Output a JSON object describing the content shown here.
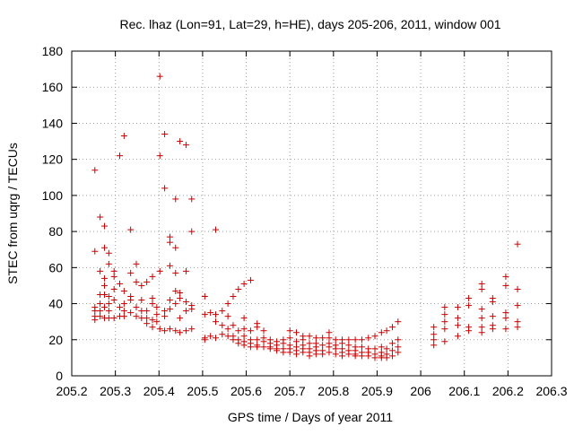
{
  "chart_data": {
    "type": "scatter",
    "title": "Rec. lhaz (Lon=91, Lat=29, h=HE), days 205-206, 2011, window 001",
    "xlabel": "GPS time / Days of year 2011",
    "ylabel": "STEC from uqrg / TECUs",
    "xlim": [
      205.2,
      206.3
    ],
    "ylim": [
      0,
      180
    ],
    "x_ticks": [
      205.2,
      205.3,
      205.4,
      205.5,
      205.6,
      205.7,
      205.8,
      205.9,
      206,
      206.1,
      206.2,
      206.3
    ],
    "x_tick_labels": [
      "205.2",
      "205.3",
      "205.4",
      "205.5",
      "205.6",
      "205.7",
      "205.8",
      "205.9",
      "206",
      "206.1",
      "206.2",
      "206.3"
    ],
    "y_ticks": [
      0,
      20,
      40,
      60,
      80,
      100,
      120,
      140,
      160,
      180
    ],
    "y_tick_labels": [
      "0",
      "20",
      "40",
      "60",
      "80",
      "100",
      "120",
      "140",
      "160",
      "180"
    ],
    "grid": true,
    "marker": "plus",
    "marker_color": "#cc0000",
    "series": [
      {
        "points": [
          [
            205.253,
            114
          ],
          [
            205.253,
            69
          ],
          [
            205.253,
            38
          ],
          [
            205.253,
            36
          ],
          [
            205.253,
            33
          ],
          [
            205.253,
            31
          ],
          [
            205.265,
            88
          ],
          [
            205.265,
            58
          ],
          [
            205.265,
            45
          ],
          [
            205.265,
            40
          ],
          [
            205.265,
            36
          ],
          [
            205.265,
            33
          ],
          [
            205.275,
            83
          ],
          [
            205.275,
            71
          ],
          [
            205.275,
            54
          ],
          [
            205.275,
            50
          ],
          [
            205.275,
            45
          ],
          [
            205.275,
            38
          ],
          [
            205.275,
            32
          ],
          [
            205.285,
            68
          ],
          [
            205.285,
            62
          ],
          [
            205.285,
            44
          ],
          [
            205.285,
            40
          ],
          [
            205.285,
            36
          ],
          [
            205.285,
            32
          ],
          [
            205.297,
            58
          ],
          [
            205.297,
            55
          ],
          [
            205.297,
            48
          ],
          [
            205.297,
            42
          ],
          [
            205.297,
            32
          ],
          [
            205.31,
            122
          ],
          [
            205.31,
            51
          ],
          [
            205.31,
            38
          ],
          [
            205.31,
            33
          ],
          [
            205.32,
            133
          ],
          [
            205.32,
            47
          ],
          [
            205.32,
            40
          ],
          [
            205.32,
            36
          ],
          [
            205.32,
            33
          ],
          [
            205.335,
            81
          ],
          [
            205.335,
            57
          ],
          [
            205.335,
            44
          ],
          [
            205.335,
            42
          ],
          [
            205.335,
            35
          ],
          [
            205.348,
            62
          ],
          [
            205.348,
            52
          ],
          [
            205.348,
            38
          ],
          [
            205.348,
            33
          ],
          [
            205.36,
            50
          ],
          [
            205.36,
            42
          ],
          [
            205.36,
            36
          ],
          [
            205.36,
            32
          ],
          [
            205.372,
            52
          ],
          [
            205.372,
            36
          ],
          [
            205.372,
            32
          ],
          [
            205.372,
            29
          ],
          [
            205.385,
            55
          ],
          [
            205.385,
            43
          ],
          [
            205.385,
            40
          ],
          [
            205.385,
            31
          ],
          [
            205.385,
            27
          ],
          [
            205.395,
            38
          ],
          [
            205.395,
            34
          ],
          [
            205.395,
            30
          ],
          [
            205.402,
            166
          ],
          [
            205.402,
            122
          ],
          [
            205.402,
            58
          ],
          [
            205.402,
            26
          ],
          [
            205.413,
            134
          ],
          [
            205.413,
            104
          ],
          [
            205.413,
            36
          ],
          [
            205.413,
            33
          ],
          [
            205.413,
            25
          ],
          [
            205.425,
            77
          ],
          [
            205.425,
            74
          ],
          [
            205.425,
            61
          ],
          [
            205.425,
            42
          ],
          [
            205.425,
            37
          ],
          [
            205.425,
            26
          ],
          [
            205.438,
            98
          ],
          [
            205.438,
            71
          ],
          [
            205.438,
            57
          ],
          [
            205.438,
            47
          ],
          [
            205.438,
            40
          ],
          [
            205.438,
            25
          ],
          [
            205.448,
            130
          ],
          [
            205.448,
            46
          ],
          [
            205.448,
            43
          ],
          [
            205.448,
            32
          ],
          [
            205.448,
            24
          ],
          [
            205.462,
            128
          ],
          [
            205.462,
            58
          ],
          [
            205.462,
            41
          ],
          [
            205.462,
            36
          ],
          [
            205.462,
            25
          ],
          [
            205.475,
            98
          ],
          [
            205.475,
            80
          ],
          [
            205.475,
            39
          ],
          [
            205.475,
            37
          ],
          [
            205.475,
            26
          ],
          [
            205.505,
            44
          ],
          [
            205.505,
            34
          ],
          [
            205.505,
            21
          ],
          [
            205.505,
            20
          ],
          [
            205.518,
            35
          ],
          [
            205.518,
            22
          ],
          [
            205.53,
            81
          ],
          [
            205.53,
            34
          ],
          [
            205.53,
            30
          ],
          [
            205.53,
            21
          ],
          [
            205.545,
            36
          ],
          [
            205.545,
            28
          ],
          [
            205.545,
            23
          ],
          [
            205.558,
            40
          ],
          [
            205.558,
            33
          ],
          [
            205.558,
            26
          ],
          [
            205.558,
            22
          ],
          [
            205.57,
            44
          ],
          [
            205.57,
            28
          ],
          [
            205.57,
            22
          ],
          [
            205.57,
            20
          ],
          [
            205.582,
            48
          ],
          [
            205.582,
            25
          ],
          [
            205.582,
            20
          ],
          [
            205.582,
            18
          ],
          [
            205.595,
            51
          ],
          [
            205.595,
            32
          ],
          [
            205.595,
            26
          ],
          [
            205.595,
            22
          ],
          [
            205.595,
            19
          ],
          [
            205.595,
            17
          ],
          [
            205.61,
            53
          ],
          [
            205.61,
            25
          ],
          [
            205.61,
            20
          ],
          [
            205.61,
            18
          ],
          [
            205.61,
            16
          ],
          [
            205.625,
            29
          ],
          [
            205.625,
            27
          ],
          [
            205.625,
            20
          ],
          [
            205.625,
            17
          ],
          [
            205.625,
            16
          ],
          [
            205.64,
            25
          ],
          [
            205.64,
            21
          ],
          [
            205.64,
            19
          ],
          [
            205.64,
            16
          ],
          [
            205.655,
            20
          ],
          [
            205.655,
            18
          ],
          [
            205.655,
            16
          ],
          [
            205.655,
            15
          ],
          [
            205.67,
            19
          ],
          [
            205.67,
            17
          ],
          [
            205.67,
            15
          ],
          [
            205.67,
            14
          ],
          [
            205.685,
            20
          ],
          [
            205.685,
            18
          ],
          [
            205.685,
            15
          ],
          [
            205.685,
            13
          ],
          [
            205.7,
            25
          ],
          [
            205.7,
            21
          ],
          [
            205.7,
            17
          ],
          [
            205.7,
            15
          ],
          [
            205.7,
            13
          ],
          [
            205.715,
            24
          ],
          [
            205.715,
            19
          ],
          [
            205.715,
            16
          ],
          [
            205.715,
            14
          ],
          [
            205.715,
            12
          ],
          [
            205.73,
            22
          ],
          [
            205.73,
            20
          ],
          [
            205.73,
            17
          ],
          [
            205.73,
            15
          ],
          [
            205.73,
            13
          ],
          [
            205.745,
            22
          ],
          [
            205.745,
            18
          ],
          [
            205.745,
            15
          ],
          [
            205.745,
            13
          ],
          [
            205.745,
            11
          ],
          [
            205.76,
            21
          ],
          [
            205.76,
            18
          ],
          [
            205.76,
            16
          ],
          [
            205.76,
            14
          ],
          [
            205.76,
            12
          ],
          [
            205.775,
            21
          ],
          [
            205.775,
            17
          ],
          [
            205.775,
            14
          ],
          [
            205.775,
            12
          ],
          [
            205.79,
            24
          ],
          [
            205.79,
            21
          ],
          [
            205.79,
            18
          ],
          [
            205.79,
            16
          ],
          [
            205.79,
            13
          ],
          [
            205.805,
            20
          ],
          [
            205.805,
            17
          ],
          [
            205.805,
            15
          ],
          [
            205.805,
            12
          ],
          [
            205.82,
            20
          ],
          [
            205.82,
            18
          ],
          [
            205.82,
            15
          ],
          [
            205.82,
            13
          ],
          [
            205.82,
            11
          ],
          [
            205.835,
            20
          ],
          [
            205.835,
            17
          ],
          [
            205.835,
            14
          ],
          [
            205.835,
            12
          ],
          [
            205.85,
            20
          ],
          [
            205.85,
            16
          ],
          [
            205.85,
            14
          ],
          [
            205.85,
            12
          ],
          [
            205.85,
            11
          ],
          [
            205.865,
            20
          ],
          [
            205.865,
            16
          ],
          [
            205.865,
            13
          ],
          [
            205.865,
            11
          ],
          [
            205.88,
            21
          ],
          [
            205.88,
            15
          ],
          [
            205.88,
            13
          ],
          [
            205.88,
            11
          ],
          [
            205.895,
            22
          ],
          [
            205.895,
            15
          ],
          [
            205.895,
            12
          ],
          [
            205.895,
            10
          ],
          [
            205.91,
            24
          ],
          [
            205.91,
            16
          ],
          [
            205.91,
            13
          ],
          [
            205.91,
            11
          ],
          [
            205.91,
            10
          ],
          [
            205.922,
            25
          ],
          [
            205.922,
            15
          ],
          [
            205.922,
            12
          ],
          [
            205.922,
            10
          ],
          [
            205.935,
            27
          ],
          [
            205.935,
            18
          ],
          [
            205.935,
            14
          ],
          [
            205.935,
            11
          ],
          [
            205.948,
            30
          ],
          [
            205.948,
            20
          ],
          [
            205.948,
            16
          ],
          [
            205.948,
            13
          ],
          [
            206.03,
            27
          ],
          [
            206.03,
            23
          ],
          [
            206.03,
            20
          ],
          [
            206.03,
            17
          ],
          [
            206.055,
            38
          ],
          [
            206.055,
            34
          ],
          [
            206.055,
            30
          ],
          [
            206.055,
            26
          ],
          [
            206.055,
            19
          ],
          [
            206.085,
            38
          ],
          [
            206.085,
            32
          ],
          [
            206.085,
            28
          ],
          [
            206.085,
            22
          ],
          [
            206.11,
            43
          ],
          [
            206.11,
            39
          ],
          [
            206.11,
            27
          ],
          [
            206.11,
            25
          ],
          [
            206.14,
            51
          ],
          [
            206.14,
            48
          ],
          [
            206.14,
            37
          ],
          [
            206.14,
            32
          ],
          [
            206.14,
            27
          ],
          [
            206.14,
            24
          ],
          [
            206.165,
            43
          ],
          [
            206.165,
            41
          ],
          [
            206.165,
            33
          ],
          [
            206.165,
            28
          ],
          [
            206.165,
            26
          ],
          [
            206.195,
            55
          ],
          [
            206.195,
            50
          ],
          [
            206.195,
            35
          ],
          [
            206.195,
            32
          ],
          [
            206.195,
            26
          ],
          [
            206.222,
            73
          ],
          [
            206.222,
            48
          ],
          [
            206.222,
            39
          ],
          [
            206.222,
            30
          ],
          [
            206.222,
            27
          ]
        ]
      }
    ]
  }
}
